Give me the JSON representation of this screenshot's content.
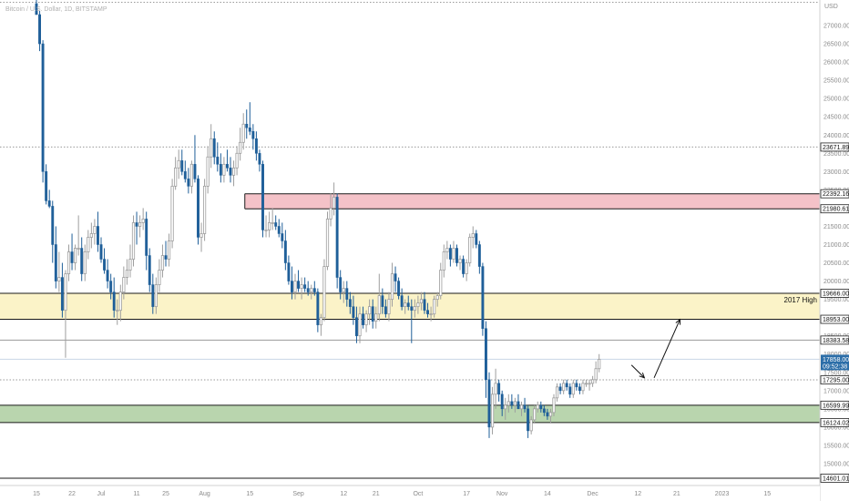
{
  "header": {
    "symbol_title": "Bitcoin / U.S. Dollar, 1D, BITSTAMP",
    "currency": "USD"
  },
  "colors": {
    "up": "#9e9e9e",
    "down": "#1f5f99",
    "resistance_zone": "#f4c2c8",
    "resistance_border": "#222222",
    "high_zone": "#fbf3c8",
    "support_zone": "#b9d5ae",
    "last_price": "#2c6ea8"
  },
  "chart_data": {
    "type": "candlestick",
    "title": "Bitcoin / U.S. Dollar, 1D, BITSTAMP",
    "ylim": [
      14400,
      27700
    ],
    "y_ticks": [
      27000,
      26500,
      26000,
      25500,
      25000,
      24500,
      24000,
      23500,
      23000,
      22500,
      22000,
      21500,
      21000,
      20500,
      20000,
      19500,
      19000,
      18500,
      18000,
      17500,
      17000,
      16500,
      16000,
      15500,
      15000
    ],
    "x_ticks": [
      "15",
      "22",
      "Jul",
      "11",
      "25",
      "Aug",
      "15",
      "Sep",
      "12",
      "21",
      "Oct",
      "17",
      "Nov",
      "14",
      "Dec",
      "12",
      "21",
      "2023",
      "15"
    ],
    "grid": false,
    "levels": [
      {
        "price": 23671.89,
        "label": "23671.89",
        "style": "dotted"
      },
      {
        "price": 19666.0,
        "label": "19666.00",
        "style": "solid"
      },
      {
        "price": 18953.0,
        "label": "18953.00",
        "style": "solid"
      },
      {
        "price": 18383.58,
        "label": "18383.58",
        "style": "solid"
      },
      {
        "price": 17295.0,
        "label": "17295.00",
        "style": "dotted"
      },
      {
        "price": 16599.99,
        "label": "16599.99",
        "style": "solid"
      },
      {
        "price": 16124.02,
        "label": "16124.02",
        "style": "solid"
      },
      {
        "price": 14601.01,
        "label": "14601.01",
        "style": "solid"
      }
    ],
    "zones": [
      {
        "name": "resistance",
        "top": 22392.16,
        "bottom": 21980.61,
        "top_label": "22392.16",
        "bottom_label": "21980.61",
        "start_index": 65
      },
      {
        "name": "2017 High",
        "top": 19666.0,
        "bottom": 18953.0,
        "top_label": "19666.00",
        "bottom_label": "18953.00",
        "start_index": 0,
        "label": "2017 High"
      },
      {
        "name": "support",
        "top": 16599.99,
        "bottom": 16124.02,
        "top_label": "16599.99",
        "bottom_label": "16124.02",
        "start_index": 0
      }
    ],
    "last_price": {
      "value": 17858.0,
      "label": "17858.00",
      "countdown": "09:52:38"
    },
    "candles": [
      {
        "o": 27600,
        "h": 27700,
        "l": 27300,
        "c": 27300
      },
      {
        "o": 27300,
        "h": 27400,
        "l": 26300,
        "c": 26500
      },
      {
        "o": 26500,
        "h": 26600,
        "l": 22700,
        "c": 23000
      },
      {
        "o": 23000,
        "h": 23200,
        "l": 22100,
        "c": 22200
      },
      {
        "o": 22200,
        "h": 22500,
        "l": 22000,
        "c": 22050
      },
      {
        "o": 22050,
        "h": 22200,
        "l": 20500,
        "c": 21000
      },
      {
        "o": 21000,
        "h": 21500,
        "l": 19800,
        "c": 20000
      },
      {
        "o": 20000,
        "h": 20800,
        "l": 19700,
        "c": 20100
      },
      {
        "o": 20100,
        "h": 20500,
        "l": 19000,
        "c": 19200
      },
      {
        "o": 19200,
        "h": 20300,
        "l": 17900,
        "c": 20200
      },
      {
        "o": 20200,
        "h": 21000,
        "l": 20000,
        "c": 20800
      },
      {
        "o": 20800,
        "h": 21300,
        "l": 20300,
        "c": 20500
      },
      {
        "o": 20500,
        "h": 21000,
        "l": 20300,
        "c": 20900
      },
      {
        "o": 20900,
        "h": 21800,
        "l": 20700,
        "c": 20900
      },
      {
        "o": 20900,
        "h": 21200,
        "l": 20000,
        "c": 20200
      },
      {
        "o": 20200,
        "h": 21000,
        "l": 20000,
        "c": 20800
      },
      {
        "o": 20800,
        "h": 21400,
        "l": 20600,
        "c": 21200
      },
      {
        "o": 21200,
        "h": 21600,
        "l": 20900,
        "c": 21300
      },
      {
        "o": 21300,
        "h": 21700,
        "l": 21000,
        "c": 21500
      },
      {
        "o": 21500,
        "h": 21900,
        "l": 20800,
        "c": 21000
      },
      {
        "o": 21000,
        "h": 21200,
        "l": 20500,
        "c": 20600
      },
      {
        "o": 20600,
        "h": 20900,
        "l": 20200,
        "c": 20300
      },
      {
        "o": 20300,
        "h": 20600,
        "l": 19800,
        "c": 20000
      },
      {
        "o": 20000,
        "h": 20200,
        "l": 19500,
        "c": 19700
      },
      {
        "o": 19700,
        "h": 20100,
        "l": 19000,
        "c": 19200
      },
      {
        "o": 19200,
        "h": 19500,
        "l": 18800,
        "c": 19200
      },
      {
        "o": 19200,
        "h": 19900,
        "l": 18900,
        "c": 19700
      },
      {
        "o": 19700,
        "h": 20400,
        "l": 19500,
        "c": 20100
      },
      {
        "o": 20100,
        "h": 20600,
        "l": 19900,
        "c": 20300
      },
      {
        "o": 20300,
        "h": 21000,
        "l": 20100,
        "c": 20600
      },
      {
        "o": 20600,
        "h": 21800,
        "l": 20400,
        "c": 21600
      },
      {
        "o": 21600,
        "h": 21900,
        "l": 21000,
        "c": 21500
      },
      {
        "o": 21500,
        "h": 21800,
        "l": 21200,
        "c": 21600
      },
      {
        "o": 21600,
        "h": 22000,
        "l": 21400,
        "c": 21700
      },
      {
        "o": 21700,
        "h": 21900,
        "l": 20300,
        "c": 20700
      },
      {
        "o": 20700,
        "h": 20900,
        "l": 19700,
        "c": 19900
      },
      {
        "o": 19900,
        "h": 20200,
        "l": 19100,
        "c": 19300
      },
      {
        "o": 19300,
        "h": 20100,
        "l": 19100,
        "c": 19900
      },
      {
        "o": 19900,
        "h": 20600,
        "l": 19700,
        "c": 20300
      },
      {
        "o": 20300,
        "h": 21000,
        "l": 20100,
        "c": 20700
      },
      {
        "o": 20700,
        "h": 21100,
        "l": 20400,
        "c": 20600
      },
      {
        "o": 20600,
        "h": 21300,
        "l": 20400,
        "c": 21100
      },
      {
        "o": 21100,
        "h": 22800,
        "l": 20900,
        "c": 22600
      },
      {
        "o": 22600,
        "h": 23400,
        "l": 22500,
        "c": 23100
      },
      {
        "o": 23100,
        "h": 23600,
        "l": 22800,
        "c": 23300
      },
      {
        "o": 23300,
        "h": 23600,
        "l": 22900,
        "c": 23000
      },
      {
        "o": 23000,
        "h": 23300,
        "l": 22700,
        "c": 22800
      },
      {
        "o": 22800,
        "h": 23100,
        "l": 22400,
        "c": 22600
      },
      {
        "o": 22600,
        "h": 23300,
        "l": 22400,
        "c": 23200
      },
      {
        "o": 23200,
        "h": 24000,
        "l": 22700,
        "c": 22800
      },
      {
        "o": 22800,
        "h": 22900,
        "l": 21000,
        "c": 21200
      },
      {
        "o": 21200,
        "h": 21600,
        "l": 20800,
        "c": 21300
      },
      {
        "o": 21300,
        "h": 22800,
        "l": 21100,
        "c": 22600
      },
      {
        "o": 22600,
        "h": 23700,
        "l": 22400,
        "c": 23400
      },
      {
        "o": 23400,
        "h": 24300,
        "l": 23100,
        "c": 23900
      },
      {
        "o": 23900,
        "h": 24100,
        "l": 23200,
        "c": 23400
      },
      {
        "o": 23400,
        "h": 23800,
        "l": 23000,
        "c": 23200
      },
      {
        "o": 23200,
        "h": 23500,
        "l": 22700,
        "c": 22900
      },
      {
        "o": 22900,
        "h": 23400,
        "l": 22700,
        "c": 23200
      },
      {
        "o": 23200,
        "h": 23600,
        "l": 23000,
        "c": 23100
      },
      {
        "o": 23100,
        "h": 23400,
        "l": 22700,
        "c": 22900
      },
      {
        "o": 22900,
        "h": 23300,
        "l": 22600,
        "c": 23100
      },
      {
        "o": 23100,
        "h": 23700,
        "l": 22900,
        "c": 23500
      },
      {
        "o": 23500,
        "h": 24200,
        "l": 23300,
        "c": 23800
      },
      {
        "o": 23800,
        "h": 24600,
        "l": 23600,
        "c": 24300
      },
      {
        "o": 24300,
        "h": 24700,
        "l": 23900,
        "c": 24200
      },
      {
        "o": 24200,
        "h": 24900,
        "l": 24000,
        "c": 24100
      },
      {
        "o": 24100,
        "h": 24300,
        "l": 23600,
        "c": 23900
      },
      {
        "o": 23900,
        "h": 24100,
        "l": 23300,
        "c": 23500
      },
      {
        "o": 23500,
        "h": 23600,
        "l": 23000,
        "c": 23200
      },
      {
        "o": 23200,
        "h": 23300,
        "l": 21200,
        "c": 21400
      },
      {
        "o": 21400,
        "h": 21800,
        "l": 21200,
        "c": 21400
      },
      {
        "o": 21400,
        "h": 21900,
        "l": 21200,
        "c": 21600
      },
      {
        "o": 21600,
        "h": 22000,
        "l": 21400,
        "c": 21600
      },
      {
        "o": 21600,
        "h": 21800,
        "l": 21400,
        "c": 21500
      },
      {
        "o": 21500,
        "h": 21700,
        "l": 21200,
        "c": 21300
      },
      {
        "o": 21300,
        "h": 21600,
        "l": 20900,
        "c": 21100
      },
      {
        "o": 21100,
        "h": 21400,
        "l": 20300,
        "c": 20500
      },
      {
        "o": 20500,
        "h": 20700,
        "l": 19900,
        "c": 20000
      },
      {
        "o": 20000,
        "h": 20400,
        "l": 19500,
        "c": 19700
      },
      {
        "o": 19700,
        "h": 20200,
        "l": 19500,
        "c": 20000
      },
      {
        "o": 20000,
        "h": 20300,
        "l": 19700,
        "c": 19800
      },
      {
        "o": 19800,
        "h": 20100,
        "l": 19500,
        "c": 19900
      },
      {
        "o": 19900,
        "h": 20100,
        "l": 19700,
        "c": 19800
      },
      {
        "o": 19800,
        "h": 20000,
        "l": 19600,
        "c": 19700
      },
      {
        "o": 19700,
        "h": 19900,
        "l": 19500,
        "c": 19800
      },
      {
        "o": 19800,
        "h": 20000,
        "l": 19600,
        "c": 19700
      },
      {
        "o": 19700,
        "h": 19800,
        "l": 18600,
        "c": 18800
      },
      {
        "o": 18800,
        "h": 19100,
        "l": 18500,
        "c": 19000
      },
      {
        "o": 19000,
        "h": 20600,
        "l": 18900,
        "c": 20400
      },
      {
        "o": 20400,
        "h": 21900,
        "l": 20300,
        "c": 21700
      },
      {
        "o": 21700,
        "h": 22400,
        "l": 21500,
        "c": 22000
      },
      {
        "o": 22000,
        "h": 22700,
        "l": 21800,
        "c": 22300
      },
      {
        "o": 22300,
        "h": 22400,
        "l": 19800,
        "c": 20100
      },
      {
        "o": 20100,
        "h": 20300,
        "l": 19500,
        "c": 19700
      },
      {
        "o": 19700,
        "h": 20000,
        "l": 19400,
        "c": 19800
      },
      {
        "o": 19800,
        "h": 20000,
        "l": 19300,
        "c": 19500
      },
      {
        "o": 19500,
        "h": 19700,
        "l": 19100,
        "c": 19300
      },
      {
        "o": 19300,
        "h": 19600,
        "l": 18800,
        "c": 19000
      },
      {
        "o": 19000,
        "h": 19300,
        "l": 18300,
        "c": 18500
      },
      {
        "o": 18500,
        "h": 19300,
        "l": 18300,
        "c": 19100
      },
      {
        "o": 19100,
        "h": 19300,
        "l": 18700,
        "c": 18800
      },
      {
        "o": 18800,
        "h": 19200,
        "l": 18600,
        "c": 19100
      },
      {
        "o": 19100,
        "h": 19500,
        "l": 18800,
        "c": 19300
      },
      {
        "o": 19300,
        "h": 19500,
        "l": 18700,
        "c": 18900
      },
      {
        "o": 18900,
        "h": 19300,
        "l": 18700,
        "c": 19100
      },
      {
        "o": 19100,
        "h": 20200,
        "l": 18900,
        "c": 19600
      },
      {
        "o": 19600,
        "h": 19800,
        "l": 19100,
        "c": 19300
      },
      {
        "o": 19300,
        "h": 19500,
        "l": 19000,
        "c": 19100
      },
      {
        "o": 19100,
        "h": 19700,
        "l": 18900,
        "c": 19500
      },
      {
        "o": 19500,
        "h": 20500,
        "l": 19300,
        "c": 20200
      },
      {
        "o": 20200,
        "h": 20400,
        "l": 19700,
        "c": 20000
      },
      {
        "o": 20000,
        "h": 20100,
        "l": 19500,
        "c": 19600
      },
      {
        "o": 19600,
        "h": 19800,
        "l": 19200,
        "c": 19300
      },
      {
        "o": 19300,
        "h": 19500,
        "l": 19100,
        "c": 19400
      },
      {
        "o": 19400,
        "h": 19600,
        "l": 19200,
        "c": 19300
      },
      {
        "o": 19300,
        "h": 19500,
        "l": 18300,
        "c": 19200
      },
      {
        "o": 19200,
        "h": 19500,
        "l": 19000,
        "c": 19300
      },
      {
        "o": 19300,
        "h": 19600,
        "l": 19100,
        "c": 19400
      },
      {
        "o": 19400,
        "h": 19700,
        "l": 19200,
        "c": 19500
      },
      {
        "o": 19500,
        "h": 19700,
        "l": 19100,
        "c": 19200
      },
      {
        "o": 19200,
        "h": 19400,
        "l": 19000,
        "c": 19100
      },
      {
        "o": 19100,
        "h": 19300,
        "l": 18900,
        "c": 19100
      },
      {
        "o": 19100,
        "h": 19600,
        "l": 19000,
        "c": 19500
      },
      {
        "o": 19500,
        "h": 19700,
        "l": 19300,
        "c": 19600
      },
      {
        "o": 19600,
        "h": 20500,
        "l": 19500,
        "c": 20300
      },
      {
        "o": 20300,
        "h": 21000,
        "l": 20100,
        "c": 20800
      },
      {
        "o": 20800,
        "h": 21100,
        "l": 20600,
        "c": 20900
      },
      {
        "o": 20900,
        "h": 21000,
        "l": 20400,
        "c": 20600
      },
      {
        "o": 20600,
        "h": 21100,
        "l": 20500,
        "c": 20900
      },
      {
        "o": 20900,
        "h": 21000,
        "l": 20400,
        "c": 20500
      },
      {
        "o": 20500,
        "h": 20700,
        "l": 20300,
        "c": 20600
      },
      {
        "o": 20600,
        "h": 20700,
        "l": 20100,
        "c": 20200
      },
      {
        "o": 20200,
        "h": 20600,
        "l": 20000,
        "c": 20500
      },
      {
        "o": 20500,
        "h": 21300,
        "l": 20400,
        "c": 21200
      },
      {
        "o": 21200,
        "h": 21500,
        "l": 20900,
        "c": 21300
      },
      {
        "o": 21300,
        "h": 21400,
        "l": 20900,
        "c": 21000
      },
      {
        "o": 21000,
        "h": 21100,
        "l": 20200,
        "c": 20400
      },
      {
        "o": 20400,
        "h": 20500,
        "l": 18500,
        "c": 18700
      },
      {
        "o": 18700,
        "h": 18900,
        "l": 16800,
        "c": 17300
      },
      {
        "o": 17300,
        "h": 17500,
        "l": 15700,
        "c": 16000
      },
      {
        "o": 16000,
        "h": 17100,
        "l": 15800,
        "c": 16900
      },
      {
        "o": 16900,
        "h": 17600,
        "l": 16500,
        "c": 17200
      },
      {
        "o": 17200,
        "h": 17300,
        "l": 16700,
        "c": 16900
      },
      {
        "o": 16900,
        "h": 17000,
        "l": 16300,
        "c": 16500
      },
      {
        "o": 16500,
        "h": 16800,
        "l": 16200,
        "c": 16600
      },
      {
        "o": 16600,
        "h": 16900,
        "l": 16400,
        "c": 16700
      },
      {
        "o": 16700,
        "h": 16900,
        "l": 16500,
        "c": 16600
      },
      {
        "o": 16600,
        "h": 16800,
        "l": 16400,
        "c": 16700
      },
      {
        "o": 16700,
        "h": 16900,
        "l": 16500,
        "c": 16500
      },
      {
        "o": 16500,
        "h": 16700,
        "l": 16300,
        "c": 16600
      },
      {
        "o": 16600,
        "h": 16800,
        "l": 16400,
        "c": 16500
      },
      {
        "o": 16500,
        "h": 16600,
        "l": 15700,
        "c": 15900
      },
      {
        "o": 15900,
        "h": 16300,
        "l": 15800,
        "c": 16200
      },
      {
        "o": 16200,
        "h": 16600,
        "l": 16100,
        "c": 16500
      },
      {
        "o": 16500,
        "h": 16700,
        "l": 16400,
        "c": 16600
      },
      {
        "o": 16600,
        "h": 16700,
        "l": 16400,
        "c": 16500
      },
      {
        "o": 16500,
        "h": 16600,
        "l": 16300,
        "c": 16400
      },
      {
        "o": 16400,
        "h": 16500,
        "l": 16200,
        "c": 16300
      },
      {
        "o": 16300,
        "h": 16500,
        "l": 16100,
        "c": 16400
      },
      {
        "o": 16400,
        "h": 16900,
        "l": 16300,
        "c": 16800
      },
      {
        "o": 16800,
        "h": 17200,
        "l": 16700,
        "c": 17100
      },
      {
        "o": 17100,
        "h": 17200,
        "l": 16900,
        "c": 17000
      },
      {
        "o": 17000,
        "h": 17300,
        "l": 16900,
        "c": 17200
      },
      {
        "o": 17200,
        "h": 17300,
        "l": 17000,
        "c": 17100
      },
      {
        "o": 17100,
        "h": 17200,
        "l": 16800,
        "c": 16900
      },
      {
        "o": 16900,
        "h": 17300,
        "l": 16800,
        "c": 17200
      },
      {
        "o": 17200,
        "h": 17300,
        "l": 17000,
        "c": 17100
      },
      {
        "o": 17100,
        "h": 17200,
        "l": 16900,
        "c": 17000
      },
      {
        "o": 17000,
        "h": 17300,
        "l": 16900,
        "c": 17200
      },
      {
        "o": 17200,
        "h": 17300,
        "l": 17100,
        "c": 17200
      },
      {
        "o": 17200,
        "h": 17300,
        "l": 17000,
        "c": 17200
      },
      {
        "o": 17200,
        "h": 17400,
        "l": 17100,
        "c": 17300
      },
      {
        "o": 17300,
        "h": 17800,
        "l": 17200,
        "c": 17600
      },
      {
        "o": 17600,
        "h": 18000,
        "l": 17500,
        "c": 17858
      }
    ],
    "annotations": [
      {
        "type": "label",
        "text": "2017 High"
      },
      {
        "type": "arrow",
        "from_index": 184,
        "from_price": 17700,
        "to_index": 188,
        "to_price": 17350
      },
      {
        "type": "arrow",
        "from_index": 191,
        "from_price": 17350,
        "to_index": 199,
        "to_price": 18950
      }
    ]
  }
}
